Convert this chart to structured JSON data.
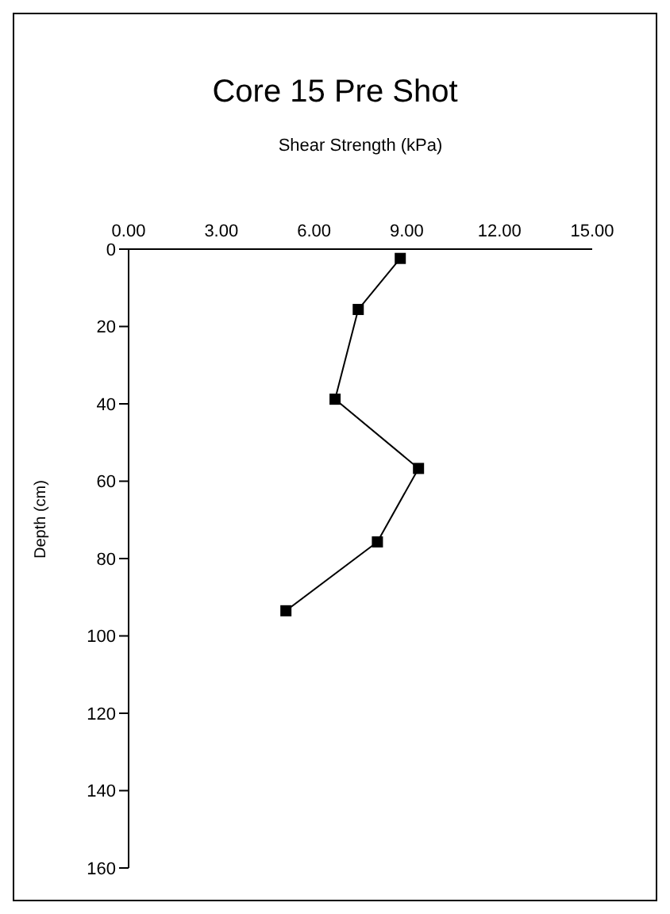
{
  "chart_data": {
    "type": "line",
    "title": "Core 15 Pre Shot",
    "xlabel": "Shear Strength (kPa)",
    "ylabel": "Depth (cm)",
    "series": [
      {
        "color": "#000000",
        "x": [
          8.79,
          7.43,
          6.68,
          9.38,
          8.05,
          5.09
        ],
        "values": [
          2.4,
          15.6,
          38.8,
          56.7,
          75.7,
          93.5
        ]
      }
    ],
    "xlim": [
      0,
      15
    ],
    "xticks": [
      {
        "value": 0,
        "label": "0.00"
      },
      {
        "value": 3,
        "label": "3.00"
      },
      {
        "value": 6,
        "label": "6.00"
      },
      {
        "value": 9,
        "label": "9.00"
      },
      {
        "value": 12,
        "label": "12.00"
      },
      {
        "value": 15,
        "label": "15.00"
      }
    ],
    "ylim": [
      160,
      0
    ],
    "yticks": [
      0,
      20,
      40,
      60,
      80,
      100,
      120,
      140,
      160
    ],
    "marker": "square",
    "line_style": "solid",
    "grid": false,
    "legend": false
  }
}
